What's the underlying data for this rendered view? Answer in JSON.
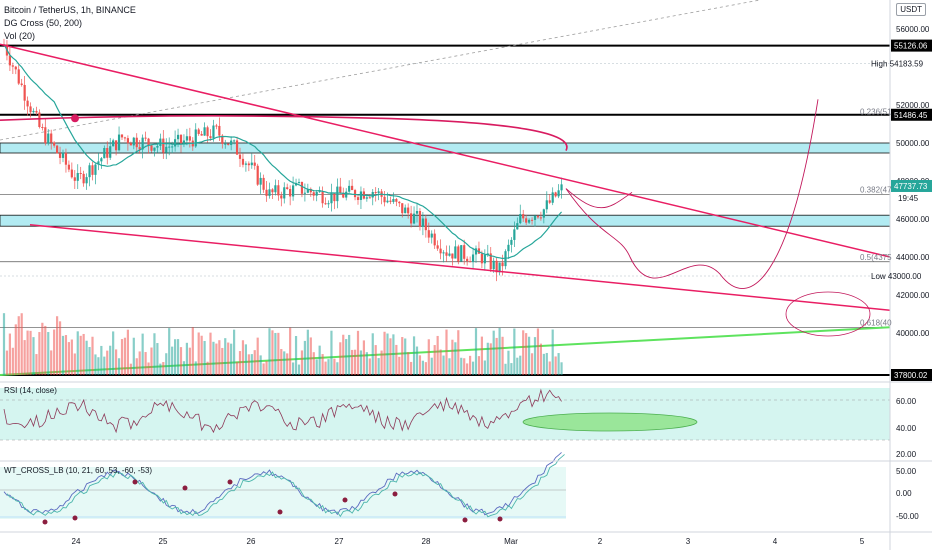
{
  "header": {
    "symbol_line": "Bitcoin / TetherUS, 1h, BINANCE",
    "indicator1": "DG Cross (50, 200)",
    "indicator2": "Vol (20)",
    "currency_button": "USDT"
  },
  "colors": {
    "bull": "#26a69a",
    "bear": "#ef5350",
    "trendline": "#e91e63",
    "ma_fast": "#26a69a",
    "ma_slow": "#d81b60",
    "zone_fill": "#b2ebf2",
    "volume_ma": "#e57373",
    "green_line": "#4caf50",
    "rsi_band": "#d5f5f0",
    "wt_band": "#d5f5f0"
  },
  "price_axis": {
    "ticks": [
      "56000.00",
      "52000.00",
      "50000.00",
      "48000.00",
      "46000.00",
      "44000.00",
      "42000.00",
      "40000.00"
    ],
    "labels": {
      "level_55126": "55126.06",
      "level_51486": "51486.45",
      "high": "High  54183.59",
      "low": "Low  43000.00",
      "current_price": "47737.73",
      "countdown": "19:45",
      "bottom": "37800.02"
    }
  },
  "fib_labels": [
    "0.236(51",
    "0.382(47",
    "0.5(4375",
    "0.618(40"
  ],
  "time_axis": [
    "24",
    "25",
    "26",
    "27",
    "28",
    "Mar",
    "2",
    "3",
    "4",
    "5"
  ],
  "rsi": {
    "title": "RSI (14, close)",
    "ticks": [
      "60.00",
      "40.00",
      "20.00"
    ]
  },
  "wt": {
    "title": "WT_CROSS_LB (10, 21, 60, 53, -60, -53)",
    "ticks": [
      "50.00",
      "0.00",
      "-50.00"
    ]
  },
  "chart_data": {
    "type": "candlestick",
    "title": "Bitcoin / TetherUS, 1h, BINANCE",
    "x_labels": [
      "24",
      "25",
      "26",
      "27",
      "28",
      "Mar",
      "2",
      "3",
      "4",
      "5"
    ],
    "y_range": [
      37800,
      57000
    ],
    "candle_count": 190,
    "last_price": 47737.73,
    "horizontal_levels": [
      55126.06,
      51486.45,
      50000,
      49800,
      46200,
      45800,
      44000,
      40000,
      37800.02
    ],
    "fib_levels": [
      {
        "label": "0.236(51",
        "value": 51400
      },
      {
        "label": "0.382(47",
        "value": 47300
      },
      {
        "label": "0.5(4375",
        "value": 43750
      },
      {
        "label": "0.618(40",
        "value": 40300
      }
    ],
    "high": 54183.59,
    "low": 43000.0,
    "rsi_range": [
      15,
      75
    ],
    "rsi_ticks": [
      60,
      40,
      20
    ],
    "wt_range": [
      -75,
      75
    ],
    "wt_ticks": [
      50,
      0,
      -50
    ]
  }
}
